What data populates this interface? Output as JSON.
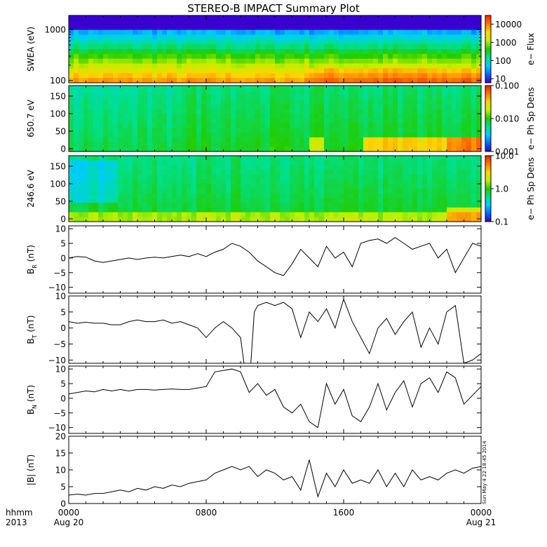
{
  "title": "STEREO-B IMPACT Summary Plot",
  "stamp": "Sun May  4 22:18:45 2014",
  "time_axis": {
    "corner_label": "hhmm",
    "corner_year": "2013",
    "ticks": [
      {
        "hour": 0,
        "label": "0000",
        "date": "Aug 20"
      },
      {
        "hour": 8,
        "label": "0800",
        "date": ""
      },
      {
        "hour": 16,
        "label": "1600",
        "date": ""
      },
      {
        "hour": 24,
        "label": "0000",
        "date": "Aug 21"
      }
    ],
    "range_hours": [
      0,
      24
    ]
  },
  "colors": {
    "trace": "#000000",
    "spectrogram_stops": [
      "#3a00cf",
      "#0066ff",
      "#00ccff",
      "#00e08a",
      "#22cc00",
      "#bff000",
      "#ffd400",
      "#ff7a00",
      "#ff1e00"
    ]
  },
  "chart_data": [
    {
      "type": "heatmap",
      "ylabel": "SWEA (eV)",
      "yscale": "log",
      "ylim": [
        90,
        1900
      ],
      "yticks": [
        {
          "value": 100,
          "label": "100"
        },
        {
          "value": 1000,
          "label": "1000"
        }
      ],
      "colorbar": {
        "label": "e− Flux",
        "scale": "log",
        "range": [
          6,
          30000
        ],
        "ticks": [
          {
            "value": 10,
            "label": "10"
          },
          {
            "value": 100,
            "label": "100"
          },
          {
            "value": 1000,
            "label": "1000"
          },
          {
            "value": 10000,
            "label": "10000"
          }
        ]
      }
    },
    {
      "type": "heatmap",
      "ylabel": "650.7 eV",
      "yscale": "linear",
      "ylim": [
        -8,
        180
      ],
      "yticks": [
        {
          "value": 0,
          "label": "0"
        },
        {
          "value": 50,
          "label": "50"
        },
        {
          "value": 100,
          "label": "100"
        },
        {
          "value": 150,
          "label": "150"
        }
      ],
      "colorbar": {
        "label": "e− Ph Sp Dens",
        "scale": "log",
        "range": [
          0.001,
          0.1
        ],
        "ticks": [
          {
            "value": 0.001,
            "label": "0.001"
          },
          {
            "value": 0.01,
            "label": "0.010"
          },
          {
            "value": 0.1,
            "label": "0.100"
          }
        ]
      }
    },
    {
      "type": "heatmap",
      "ylabel": "246.6 eV",
      "yscale": "linear",
      "ylim": [
        -8,
        180
      ],
      "yticks": [
        {
          "value": 0,
          "label": "0"
        },
        {
          "value": 50,
          "label": "50"
        },
        {
          "value": 100,
          "label": "100"
        },
        {
          "value": 150,
          "label": "150"
        }
      ],
      "colorbar": {
        "label": "e− Ph Sp Dens",
        "scale": "log",
        "range": [
          0.1,
          10
        ],
        "ticks": [
          {
            "value": 0.1,
            "label": "0.1"
          },
          {
            "value": 1,
            "label": "1.0"
          },
          {
            "value": 10,
            "label": "10.0"
          }
        ]
      }
    },
    {
      "type": "line",
      "ylabel": "B",
      "ylabel_sub": "R",
      "ylabel_unit": "(nT)",
      "ylim": [
        -12,
        11
      ],
      "yticks": [
        {
          "value": -10,
          "label": "−10"
        },
        {
          "value": -5,
          "label": "−5"
        },
        {
          "value": 0,
          "label": "0"
        },
        {
          "value": 5,
          "label": "5"
        },
        {
          "value": 10,
          "label": "10"
        }
      ],
      "x": [
        0,
        0.5,
        1,
        1.5,
        2,
        2.5,
        3,
        3.5,
        4,
        4.5,
        5,
        5.5,
        6,
        6.5,
        7,
        7.5,
        8,
        8.5,
        9,
        9.5,
        10,
        10.5,
        11,
        11.5,
        12,
        12.5,
        13,
        13.5,
        14,
        14.5,
        15,
        15.5,
        16,
        16.5,
        17,
        17.5,
        18,
        18.5,
        19,
        19.5,
        20,
        20.5,
        21,
        21.5,
        22,
        22.5,
        23,
        23.5,
        24
      ],
      "y": [
        0,
        0.5,
        0.3,
        -1,
        -1.5,
        -1,
        -0.5,
        0,
        -0.5,
        0,
        0.3,
        0,
        0.5,
        1,
        0.5,
        1.5,
        0.5,
        2,
        3,
        5,
        4,
        2,
        -1,
        -3,
        -5,
        -6,
        -2,
        3,
        0,
        -3,
        4,
        0,
        2,
        -3,
        5,
        6,
        6.5,
        5,
        7,
        5,
        3,
        4,
        5,
        0,
        3,
        -5,
        0,
        5,
        4
      ]
    },
    {
      "type": "line",
      "ylabel": "B",
      "ylabel_sub": "T",
      "ylabel_unit": "(nT)",
      "ylim": [
        -11,
        10
      ],
      "yticks": [
        {
          "value": -10,
          "label": "−10"
        },
        {
          "value": -5,
          "label": "−5"
        },
        {
          "value": 0,
          "label": "0"
        },
        {
          "value": 5,
          "label": "5"
        },
        {
          "value": 10,
          "label": "10"
        }
      ],
      "x": [
        0,
        0.5,
        1,
        1.5,
        2,
        2.5,
        3,
        3.5,
        4,
        4.5,
        5,
        5.5,
        6,
        6.5,
        7,
        7.5,
        8,
        8.5,
        9,
        9.5,
        10,
        10.2,
        10.6,
        10.8,
        11,
        11.5,
        12,
        12.5,
        13,
        13.5,
        14,
        14.5,
        15,
        15.5,
        16,
        16.5,
        17,
        17.5,
        18,
        18.5,
        19,
        19.5,
        20,
        20.5,
        21,
        21.5,
        22,
        22.5,
        23,
        23.5,
        24
      ],
      "y": [
        2,
        1.5,
        1.8,
        1.5,
        1.5,
        1,
        1,
        2,
        2.5,
        2,
        2,
        2.5,
        1.5,
        2,
        1,
        0,
        -3,
        0,
        2,
        0,
        -3,
        -11,
        -11,
        5,
        7,
        8,
        7,
        8,
        6,
        -3,
        5,
        2,
        6,
        0,
        9,
        2,
        -3,
        -8,
        0,
        3,
        -2,
        2,
        5,
        -6,
        0,
        -5,
        5,
        7,
        -11,
        -10,
        -8
      ]
    },
    {
      "type": "line",
      "ylabel": "B",
      "ylabel_sub": "N",
      "ylabel_unit": "(nT)",
      "ylim": [
        -12,
        11
      ],
      "yticks": [
        {
          "value": -10,
          "label": "−10"
        },
        {
          "value": -5,
          "label": "−5"
        },
        {
          "value": 0,
          "label": "0"
        },
        {
          "value": 5,
          "label": "5"
        },
        {
          "value": 10,
          "label": "10"
        }
      ],
      "x": [
        0,
        0.5,
        1,
        1.5,
        2,
        2.5,
        3,
        3.5,
        4,
        4.5,
        5,
        5.5,
        6,
        6.5,
        7,
        7.5,
        8,
        8.5,
        9,
        9.5,
        10,
        10.5,
        11,
        11.5,
        12,
        12.5,
        13,
        13.5,
        14,
        14.5,
        15,
        15.5,
        16,
        16.5,
        17,
        17.5,
        18,
        18.5,
        19,
        19.5,
        20,
        20.5,
        21,
        21.5,
        22,
        22.5,
        23,
        23.5,
        24
      ],
      "y": [
        1.5,
        2,
        2.5,
        2.2,
        3,
        2.5,
        3,
        2.5,
        3,
        3,
        2.8,
        3,
        3.2,
        3,
        3,
        3.5,
        4,
        9,
        9.5,
        10,
        9,
        2,
        5,
        1,
        3,
        -3,
        -5,
        -2,
        -8,
        -10,
        5,
        -2,
        3,
        -6,
        -8,
        -3,
        5,
        -4,
        2,
        6,
        -3,
        5,
        7,
        2,
        9,
        7,
        -2,
        1,
        4
      ]
    },
    {
      "type": "line",
      "ylabel": "|B|",
      "ylabel_sub": "",
      "ylabel_unit": "(nT)",
      "ylim": [
        0,
        20
      ],
      "yticks": [
        {
          "value": 0,
          "label": "0"
        },
        {
          "value": 5,
          "label": "5"
        },
        {
          "value": 10,
          "label": "10"
        },
        {
          "value": 15,
          "label": "15"
        },
        {
          "value": 20,
          "label": "20"
        }
      ],
      "x": [
        0,
        0.5,
        1,
        1.5,
        2,
        2.5,
        3,
        3.5,
        4,
        4.5,
        5,
        5.5,
        6,
        6.5,
        7,
        7.5,
        8,
        8.5,
        9,
        9.5,
        10,
        10.5,
        11,
        11.5,
        12,
        12.5,
        13,
        13.5,
        14,
        14.5,
        15,
        15.5,
        16,
        16.5,
        17,
        17.5,
        18,
        18.5,
        19,
        19.5,
        20,
        20.5,
        21,
        21.5,
        22,
        22.5,
        23,
        23.5,
        24
      ],
      "y": [
        2.5,
        2.8,
        2.5,
        3,
        3,
        3.5,
        4,
        3.5,
        4.5,
        4,
        5,
        4.5,
        5.5,
        5,
        6,
        6.5,
        7,
        9,
        10,
        11,
        10,
        11,
        8,
        10,
        9,
        7,
        8,
        4,
        13,
        2,
        9,
        5,
        10,
        6,
        7,
        6,
        10,
        5,
        9,
        5,
        10,
        7,
        8,
        7,
        9,
        10,
        9,
        10.5,
        11
      ]
    }
  ]
}
